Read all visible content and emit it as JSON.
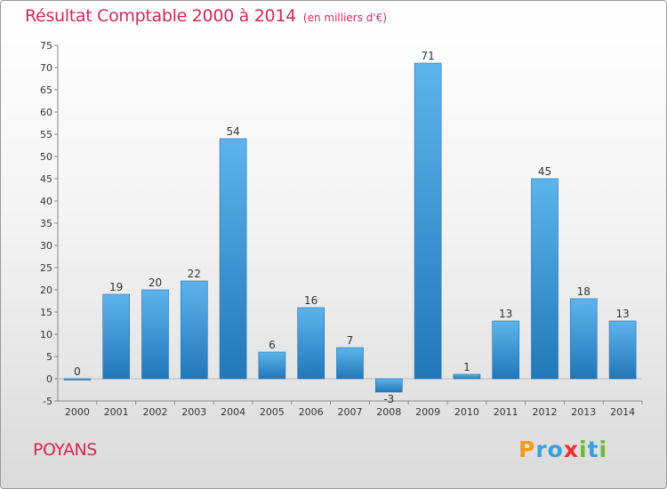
{
  "header": {
    "title": "Résultat Comptable 2000 à 2014",
    "unit": "(en milliers d'€)"
  },
  "footer": {
    "town": "POYANS",
    "brand_letters": [
      {
        "ch": "P",
        "color": "#f39c12"
      },
      {
        "ch": "r",
        "color": "#3aa0d8"
      },
      {
        "ch": "o",
        "color": "#3aa0d8"
      },
      {
        "ch": "x",
        "color": "#e8322f"
      },
      {
        "ch": "i",
        "color": "#6cbb3c"
      },
      {
        "ch": "t",
        "color": "#3aa0d8"
      },
      {
        "ch": "i",
        "color": "#6cbb3c"
      }
    ]
  },
  "colors": {
    "title": "#cc2a5c",
    "bar_light": "#5db4ec",
    "bar_dark": "#2277b8"
  },
  "chart_data": {
    "type": "bar",
    "title": "Résultat Comptable 2000 à 2014",
    "categories": [
      "2000",
      "2001",
      "2002",
      "2003",
      "2004",
      "2005",
      "2006",
      "2007",
      "2008",
      "2009",
      "2010",
      "2011",
      "2012",
      "2013",
      "2014"
    ],
    "values": [
      0,
      19,
      20,
      22,
      54,
      6,
      16,
      7,
      -3,
      71,
      1,
      13,
      45,
      18,
      13
    ],
    "ylim": [
      -5,
      75
    ],
    "yticks": [
      -5,
      0,
      5,
      10,
      15,
      20,
      25,
      30,
      35,
      40,
      45,
      50,
      55,
      60,
      65,
      70,
      75
    ],
    "grid": false,
    "data_labels": true
  }
}
